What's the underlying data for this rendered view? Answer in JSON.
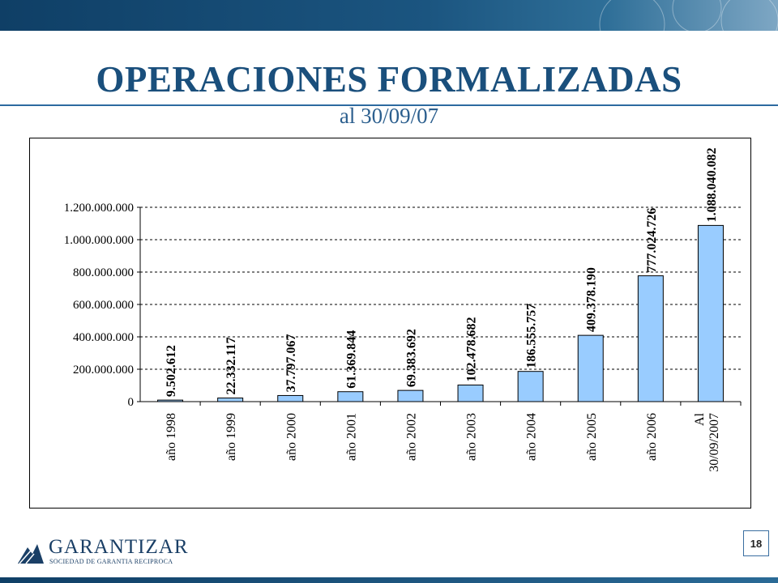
{
  "slide": {
    "title": "OPERACIONES FORMALIZADAS",
    "subtitle": "al 30/09/07",
    "page_number": "18",
    "logo_name": "GARANTIZAR",
    "logo_tagline": "SOCIEDAD DE GARANTIA RECIPROCA"
  },
  "colors": {
    "title": "#1a4f7c",
    "bar_fill": "#99ccff",
    "bar_stroke": "#000000",
    "band": "#1b5580"
  },
  "chart_data": {
    "type": "bar",
    "categories": [
      "año 1998",
      "año 1999",
      "año 2000",
      "año 2001",
      "año 2002",
      "año 2003",
      "año 2004",
      "año 2005",
      "año 2006",
      [
        "Al",
        "30/09/2007"
      ]
    ],
    "values": [
      9502612,
      22332117,
      37797067,
      61369844,
      69383692,
      102478682,
      186555757,
      409378190,
      777024726,
      1088040082
    ],
    "data_labels": [
      "9.502.612",
      "22.332.117",
      "37.797.067",
      "61.369.844",
      "69.383.692",
      "102.478.682",
      "186.555.757",
      "409.378.190",
      "777.024.726",
      "1.088.040.082"
    ],
    "yticks": [
      0,
      200000000,
      400000000,
      600000000,
      800000000,
      1000000000,
      1200000000
    ],
    "ytick_labels": [
      "0",
      "200.000.000",
      "400.000.000",
      "600.000.000",
      "800.000.000",
      "1.000.000.000",
      "1.200.000.000"
    ],
    "ylim": [
      0,
      1200000000
    ],
    "grid": "horizontal dashed",
    "legend": "none"
  }
}
